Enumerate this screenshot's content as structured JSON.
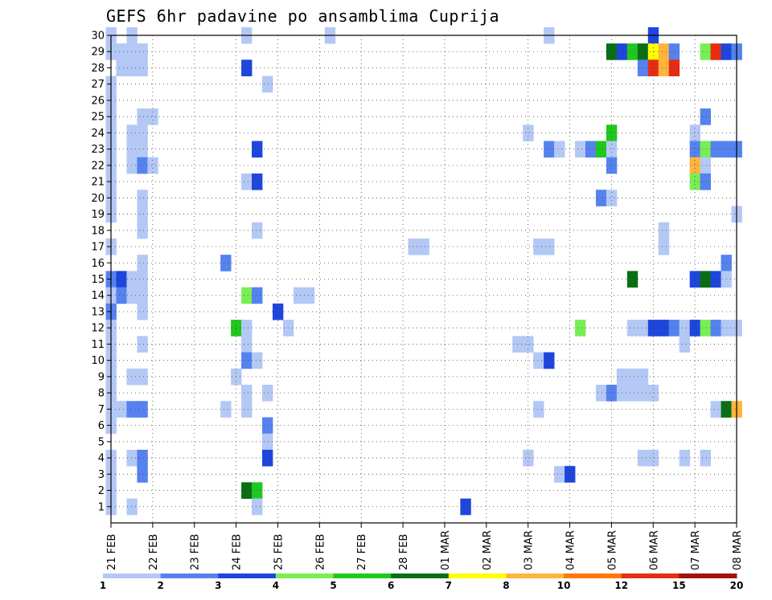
{
  "chart_data": {
    "type": "heatmap",
    "title": "GEFS 6hr padavine po ansamblima Cuprija",
    "y_tick_labels": [
      "1",
      "2",
      "3",
      "4",
      "5",
      "6",
      "7",
      "8",
      "9",
      "10",
      "11",
      "12",
      "13",
      "14",
      "15",
      "16",
      "17",
      "18",
      "19",
      "20",
      "21",
      "22",
      "23",
      "24",
      "25",
      "26",
      "27",
      "28",
      "29",
      "30"
    ],
    "y_range": [
      0,
      30
    ],
    "x_tick_labels": [
      "21 FEB",
      "22 FEB",
      "23 FEB",
      "24 FEB",
      "25 FEB",
      "26 FEB",
      "27 FEB",
      "28 FEB",
      "01 MAR",
      "02 MAR",
      "03 MAR",
      "04 MAR",
      "05 MAR",
      "06 MAR",
      "07 MAR",
      "08 MAR"
    ],
    "x_range_steps": [
      0,
      60
    ],
    "steps_per_day": 4,
    "grid": true,
    "colorbar": {
      "bounds": [
        "1",
        "2",
        "3",
        "4",
        "5",
        "6",
        "7",
        "8",
        "10",
        "12",
        "15",
        "20"
      ],
      "colors": [
        "#b4c8f5",
        "#5582ee",
        "#1e46dc",
        "#78ee55",
        "#1ec81e",
        "#0a6e14",
        "#ffff00",
        "#ffb43c",
        "#ff780a",
        "#e62d14",
        "#a0140a"
      ]
    },
    "cells": [
      {
        "m": 30,
        "t": 0,
        "c": 0
      },
      {
        "m": 30,
        "t": 2,
        "c": 0
      },
      {
        "m": 30,
        "t": 13,
        "c": 0
      },
      {
        "m": 30,
        "t": 21,
        "c": 0
      },
      {
        "m": 30,
        "t": 42,
        "c": 0
      },
      {
        "m": 30,
        "t": 52,
        "c": 2
      },
      {
        "m": 29,
        "t": 0,
        "c": 0
      },
      {
        "m": 29,
        "t": 1,
        "c": 0
      },
      {
        "m": 29,
        "t": 2,
        "c": 0
      },
      {
        "m": 29,
        "t": 3,
        "c": 0
      },
      {
        "m": 29,
        "t": 48,
        "c": 5
      },
      {
        "m": 29,
        "t": 49,
        "c": 2
      },
      {
        "m": 29,
        "t": 50,
        "c": 4
      },
      {
        "m": 29,
        "t": 51,
        "c": 5
      },
      {
        "m": 29,
        "t": 52,
        "c": 6
      },
      {
        "m": 29,
        "t": 53,
        "c": 7
      },
      {
        "m": 29,
        "t": 54,
        "c": 1
      },
      {
        "m": 29,
        "t": 57,
        "c": 3
      },
      {
        "m": 29,
        "t": 58,
        "c": 9
      },
      {
        "m": 29,
        "t": 59,
        "c": 2
      },
      {
        "m": 29,
        "t": 60,
        "c": 1
      },
      {
        "m": 28,
        "t": 1,
        "c": 0
      },
      {
        "m": 28,
        "t": 2,
        "c": 0
      },
      {
        "m": 28,
        "t": 3,
        "c": 0
      },
      {
        "m": 28,
        "t": 13,
        "c": 2
      },
      {
        "m": 28,
        "t": 51,
        "c": 1
      },
      {
        "m": 28,
        "t": 52,
        "c": 9
      },
      {
        "m": 28,
        "t": 53,
        "c": 7
      },
      {
        "m": 28,
        "t": 54,
        "c": 9
      },
      {
        "m": 27,
        "t": 0,
        "c": 0
      },
      {
        "m": 27,
        "t": 15,
        "c": 0
      },
      {
        "m": 26,
        "t": 0,
        "c": 0
      },
      {
        "m": 25,
        "t": 0,
        "c": 0
      },
      {
        "m": 25,
        "t": 3,
        "c": 0
      },
      {
        "m": 25,
        "t": 4,
        "c": 0
      },
      {
        "m": 25,
        "t": 57,
        "c": 1
      },
      {
        "m": 24,
        "t": 0,
        "c": 0
      },
      {
        "m": 24,
        "t": 2,
        "c": 0
      },
      {
        "m": 24,
        "t": 3,
        "c": 0
      },
      {
        "m": 24,
        "t": 40,
        "c": 0
      },
      {
        "m": 24,
        "t": 48,
        "c": 4
      },
      {
        "m": 24,
        "t": 56,
        "c": 0
      },
      {
        "m": 23,
        "t": 0,
        "c": 0
      },
      {
        "m": 23,
        "t": 2,
        "c": 0
      },
      {
        "m": 23,
        "t": 3,
        "c": 0
      },
      {
        "m": 23,
        "t": 14,
        "c": 2
      },
      {
        "m": 23,
        "t": 42,
        "c": 1
      },
      {
        "m": 23,
        "t": 43,
        "c": 0
      },
      {
        "m": 23,
        "t": 45,
        "c": 0
      },
      {
        "m": 23,
        "t": 46,
        "c": 1
      },
      {
        "m": 23,
        "t": 47,
        "c": 4
      },
      {
        "m": 23,
        "t": 48,
        "c": 0
      },
      {
        "m": 23,
        "t": 56,
        "c": 1
      },
      {
        "m": 23,
        "t": 57,
        "c": 3
      },
      {
        "m": 23,
        "t": 58,
        "c": 1
      },
      {
        "m": 23,
        "t": 59,
        "c": 1
      },
      {
        "m": 23,
        "t": 60,
        "c": 1
      },
      {
        "m": 22,
        "t": 0,
        "c": 0
      },
      {
        "m": 22,
        "t": 2,
        "c": 0
      },
      {
        "m": 22,
        "t": 3,
        "c": 1
      },
      {
        "m": 22,
        "t": 4,
        "c": 0
      },
      {
        "m": 22,
        "t": 48,
        "c": 1
      },
      {
        "m": 22,
        "t": 56,
        "c": 7
      },
      {
        "m": 22,
        "t": 57,
        "c": 0
      },
      {
        "m": 21,
        "t": 0,
        "c": 0
      },
      {
        "m": 21,
        "t": 13,
        "c": 0
      },
      {
        "m": 21,
        "t": 14,
        "c": 2
      },
      {
        "m": 21,
        "t": 56,
        "c": 3
      },
      {
        "m": 21,
        "t": 57,
        "c": 1
      },
      {
        "m": 20,
        "t": 0,
        "c": 0
      },
      {
        "m": 20,
        "t": 3,
        "c": 0
      },
      {
        "m": 20,
        "t": 47,
        "c": 1
      },
      {
        "m": 20,
        "t": 48,
        "c": 0
      },
      {
        "m": 19,
        "t": 0,
        "c": 0
      },
      {
        "m": 19,
        "t": 3,
        "c": 0
      },
      {
        "m": 19,
        "t": 60,
        "c": 0
      },
      {
        "m": 18,
        "t": 3,
        "c": 0
      },
      {
        "m": 18,
        "t": 14,
        "c": 0
      },
      {
        "m": 18,
        "t": 53,
        "c": 0
      },
      {
        "m": 17,
        "t": 0,
        "c": 0
      },
      {
        "m": 17,
        "t": 29,
        "c": 0
      },
      {
        "m": 17,
        "t": 30,
        "c": 0
      },
      {
        "m": 17,
        "t": 41,
        "c": 0
      },
      {
        "m": 17,
        "t": 42,
        "c": 0
      },
      {
        "m": 17,
        "t": 53,
        "c": 0
      },
      {
        "m": 16,
        "t": 3,
        "c": 0
      },
      {
        "m": 16,
        "t": 11,
        "c": 1
      },
      {
        "m": 16,
        "t": 59,
        "c": 1
      },
      {
        "m": 15,
        "t": 0,
        "c": 1
      },
      {
        "m": 15,
        "t": 1,
        "c": 2
      },
      {
        "m": 15,
        "t": 2,
        "c": 0
      },
      {
        "m": 15,
        "t": 3,
        "c": 0
      },
      {
        "m": 15,
        "t": 50,
        "c": 5
      },
      {
        "m": 15,
        "t": 56,
        "c": 2
      },
      {
        "m": 15,
        "t": 57,
        "c": 5
      },
      {
        "m": 15,
        "t": 58,
        "c": 2
      },
      {
        "m": 15,
        "t": 59,
        "c": 0
      },
      {
        "m": 14,
        "t": 0,
        "c": 0
      },
      {
        "m": 14,
        "t": 1,
        "c": 1
      },
      {
        "m": 14,
        "t": 2,
        "c": 0
      },
      {
        "m": 14,
        "t": 3,
        "c": 0
      },
      {
        "m": 14,
        "t": 13,
        "c": 3
      },
      {
        "m": 14,
        "t": 14,
        "c": 1
      },
      {
        "m": 14,
        "t": 18,
        "c": 0
      },
      {
        "m": 14,
        "t": 19,
        "c": 0
      },
      {
        "m": 13,
        "t": 0,
        "c": 1
      },
      {
        "m": 13,
        "t": 3,
        "c": 0
      },
      {
        "m": 13,
        "t": 16,
        "c": 2
      },
      {
        "m": 12,
        "t": 0,
        "c": 0
      },
      {
        "m": 12,
        "t": 12,
        "c": 4
      },
      {
        "m": 12,
        "t": 13,
        "c": 0
      },
      {
        "m": 12,
        "t": 17,
        "c": 0
      },
      {
        "m": 12,
        "t": 45,
        "c": 3
      },
      {
        "m": 12,
        "t": 50,
        "c": 0
      },
      {
        "m": 12,
        "t": 51,
        "c": 0
      },
      {
        "m": 12,
        "t": 52,
        "c": 2
      },
      {
        "m": 12,
        "t": 53,
        "c": 2
      },
      {
        "m": 12,
        "t": 54,
        "c": 1
      },
      {
        "m": 12,
        "t": 55,
        "c": 0
      },
      {
        "m": 12,
        "t": 56,
        "c": 2
      },
      {
        "m": 12,
        "t": 57,
        "c": 3
      },
      {
        "m": 12,
        "t": 58,
        "c": 1
      },
      {
        "m": 12,
        "t": 59,
        "c": 0
      },
      {
        "m": 12,
        "t": 60,
        "c": 0
      },
      {
        "m": 11,
        "t": 0,
        "c": 0
      },
      {
        "m": 11,
        "t": 3,
        "c": 0
      },
      {
        "m": 11,
        "t": 13,
        "c": 0
      },
      {
        "m": 11,
        "t": 39,
        "c": 0
      },
      {
        "m": 11,
        "t": 40,
        "c": 0
      },
      {
        "m": 11,
        "t": 55,
        "c": 0
      },
      {
        "m": 10,
        "t": 0,
        "c": 0
      },
      {
        "m": 10,
        "t": 13,
        "c": 1
      },
      {
        "m": 10,
        "t": 14,
        "c": 0
      },
      {
        "m": 10,
        "t": 41,
        "c": 0
      },
      {
        "m": 10,
        "t": 42,
        "c": 2
      },
      {
        "m": 9,
        "t": 0,
        "c": 0
      },
      {
        "m": 9,
        "t": 2,
        "c": 0
      },
      {
        "m": 9,
        "t": 3,
        "c": 0
      },
      {
        "m": 9,
        "t": 12,
        "c": 0
      },
      {
        "m": 9,
        "t": 49,
        "c": 0
      },
      {
        "m": 9,
        "t": 50,
        "c": 0
      },
      {
        "m": 9,
        "t": 51,
        "c": 0
      },
      {
        "m": 8,
        "t": 0,
        "c": 0
      },
      {
        "m": 8,
        "t": 13,
        "c": 0
      },
      {
        "m": 8,
        "t": 15,
        "c": 0
      },
      {
        "m": 8,
        "t": 47,
        "c": 0
      },
      {
        "m": 8,
        "t": 48,
        "c": 1
      },
      {
        "m": 8,
        "t": 49,
        "c": 0
      },
      {
        "m": 8,
        "t": 50,
        "c": 0
      },
      {
        "m": 8,
        "t": 51,
        "c": 0
      },
      {
        "m": 8,
        "t": 52,
        "c": 0
      },
      {
        "m": 7,
        "t": 0,
        "c": 0
      },
      {
        "m": 7,
        "t": 1,
        "c": 0
      },
      {
        "m": 7,
        "t": 2,
        "c": 1
      },
      {
        "m": 7,
        "t": 3,
        "c": 1
      },
      {
        "m": 7,
        "t": 11,
        "c": 0
      },
      {
        "m": 7,
        "t": 13,
        "c": 0
      },
      {
        "m": 7,
        "t": 41,
        "c": 0
      },
      {
        "m": 7,
        "t": 58,
        "c": 0
      },
      {
        "m": 7,
        "t": 59,
        "c": 5
      },
      {
        "m": 7,
        "t": 60,
        "c": 7
      },
      {
        "m": 6,
        "t": 0,
        "c": 0
      },
      {
        "m": 6,
        "t": 15,
        "c": 1
      },
      {
        "m": 5,
        "t": 15,
        "c": 0
      },
      {
        "m": 4,
        "t": 0,
        "c": 0
      },
      {
        "m": 4,
        "t": 2,
        "c": 0
      },
      {
        "m": 4,
        "t": 3,
        "c": 1
      },
      {
        "m": 4,
        "t": 15,
        "c": 2
      },
      {
        "m": 4,
        "t": 40,
        "c": 0
      },
      {
        "m": 4,
        "t": 51,
        "c": 0
      },
      {
        "m": 4,
        "t": 52,
        "c": 0
      },
      {
        "m": 4,
        "t": 55,
        "c": 0
      },
      {
        "m": 4,
        "t": 57,
        "c": 0
      },
      {
        "m": 3,
        "t": 0,
        "c": 0
      },
      {
        "m": 3,
        "t": 3,
        "c": 1
      },
      {
        "m": 3,
        "t": 43,
        "c": 0
      },
      {
        "m": 3,
        "t": 44,
        "c": 2
      },
      {
        "m": 2,
        "t": 0,
        "c": 0
      },
      {
        "m": 2,
        "t": 13,
        "c": 5
      },
      {
        "m": 2,
        "t": 14,
        "c": 4
      },
      {
        "m": 1,
        "t": 0,
        "c": 0
      },
      {
        "m": 1,
        "t": 2,
        "c": 0
      },
      {
        "m": 1,
        "t": 14,
        "c": 0
      },
      {
        "m": 1,
        "t": 34,
        "c": 2
      }
    ]
  }
}
